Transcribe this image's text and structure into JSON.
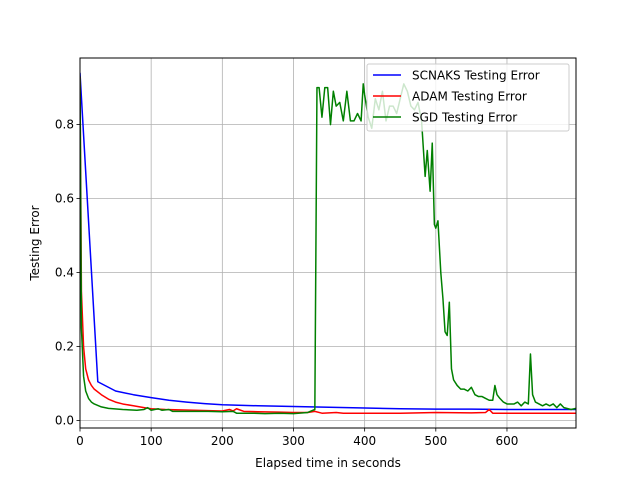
{
  "chart_data": {
    "type": "line",
    "title": "",
    "xlabel": "Elapsed time in seconds",
    "ylabel": "Testing Error",
    "xlim": [
      0,
      697
    ],
    "ylim": [
      -0.02,
      0.98
    ],
    "xticks": [
      0,
      100,
      200,
      300,
      400,
      500,
      600
    ],
    "yticks": [
      0.0,
      0.2,
      0.4,
      0.6,
      0.8
    ],
    "xtick_labels": [
      "0",
      "100",
      "200",
      "300",
      "400",
      "500",
      "600"
    ],
    "ytick_labels": [
      "0.0",
      "0.2",
      "0.4",
      "0.6",
      "0.8"
    ],
    "grid": true,
    "legend_position": "top-right",
    "series": [
      {
        "name": "SCNAKS Testing Error",
        "color": "#0000ff",
        "points": [
          [
            0,
            0.94
          ],
          [
            25,
            0.105
          ],
          [
            50,
            0.08
          ],
          [
            75,
            0.07
          ],
          [
            100,
            0.062
          ],
          [
            125,
            0.055
          ],
          [
            150,
            0.05
          ],
          [
            175,
            0.046
          ],
          [
            200,
            0.043
          ],
          [
            250,
            0.04
          ],
          [
            300,
            0.038
          ],
          [
            350,
            0.036
          ],
          [
            400,
            0.034
          ],
          [
            450,
            0.032
          ],
          [
            500,
            0.031
          ],
          [
            550,
            0.031
          ],
          [
            600,
            0.03
          ],
          [
            650,
            0.03
          ],
          [
            697,
            0.03
          ]
        ]
      },
      {
        "name": "ADAM Testing Error",
        "color": "#ff0000",
        "points": [
          [
            0,
            0.93
          ],
          [
            2,
            0.35
          ],
          [
            5,
            0.2
          ],
          [
            8,
            0.14
          ],
          [
            12,
            0.11
          ],
          [
            16,
            0.095
          ],
          [
            20,
            0.085
          ],
          [
            30,
            0.07
          ],
          [
            40,
            0.058
          ],
          [
            50,
            0.05
          ],
          [
            60,
            0.045
          ],
          [
            75,
            0.04
          ],
          [
            90,
            0.035
          ],
          [
            100,
            0.032
          ],
          [
            120,
            0.03
          ],
          [
            140,
            0.029
          ],
          [
            160,
            0.028
          ],
          [
            180,
            0.027
          ],
          [
            200,
            0.026
          ],
          [
            210,
            0.03
          ],
          [
            215,
            0.026
          ],
          [
            220,
            0.032
          ],
          [
            230,
            0.025
          ],
          [
            250,
            0.024
          ],
          [
            280,
            0.023
          ],
          [
            300,
            0.022
          ],
          [
            320,
            0.022
          ],
          [
            330,
            0.025
          ],
          [
            340,
            0.02
          ],
          [
            350,
            0.021
          ],
          [
            360,
            0.022
          ],
          [
            370,
            0.02
          ],
          [
            400,
            0.02
          ],
          [
            450,
            0.02
          ],
          [
            500,
            0.022
          ],
          [
            550,
            0.021
          ],
          [
            570,
            0.022
          ],
          [
            575,
            0.03
          ],
          [
            580,
            0.02
          ],
          [
            600,
            0.02
          ],
          [
            650,
            0.02
          ],
          [
            697,
            0.02
          ]
        ]
      },
      {
        "name": "SGD Testing Error",
        "color": "#008000",
        "points": [
          [
            0,
            0.93
          ],
          [
            2,
            0.25
          ],
          [
            5,
            0.12
          ],
          [
            8,
            0.08
          ],
          [
            12,
            0.06
          ],
          [
            16,
            0.05
          ],
          [
            20,
            0.045
          ],
          [
            30,
            0.037
          ],
          [
            40,
            0.033
          ],
          [
            60,
            0.03
          ],
          [
            80,
            0.028
          ],
          [
            90,
            0.03
          ],
          [
            95,
            0.035
          ],
          [
            100,
            0.028
          ],
          [
            110,
            0.032
          ],
          [
            115,
            0.028
          ],
          [
            125,
            0.03
          ],
          [
            130,
            0.025
          ],
          [
            150,
            0.025
          ],
          [
            180,
            0.025
          ],
          [
            200,
            0.024
          ],
          [
            215,
            0.025
          ],
          [
            220,
            0.02
          ],
          [
            240,
            0.02
          ],
          [
            260,
            0.019
          ],
          [
            280,
            0.02
          ],
          [
            300,
            0.019
          ],
          [
            320,
            0.022
          ],
          [
            330,
            0.03
          ],
          [
            333,
            0.9
          ],
          [
            336,
            0.9
          ],
          [
            340,
            0.82
          ],
          [
            344,
            0.9
          ],
          [
            348,
            0.9
          ],
          [
            352,
            0.8
          ],
          [
            356,
            0.89
          ],
          [
            360,
            0.85
          ],
          [
            365,
            0.86
          ],
          [
            370,
            0.81
          ],
          [
            375,
            0.89
          ],
          [
            380,
            0.81
          ],
          [
            385,
            0.81
          ],
          [
            390,
            0.83
          ],
          [
            395,
            0.81
          ],
          [
            398,
            0.91
          ],
          [
            400,
            0.88
          ],
          [
            405,
            0.82
          ],
          [
            410,
            0.79
          ],
          [
            415,
            0.87
          ],
          [
            420,
            0.84
          ],
          [
            425,
            0.89
          ],
          [
            430,
            0.81
          ],
          [
            435,
            0.85
          ],
          [
            440,
            0.85
          ],
          [
            445,
            0.83
          ],
          [
            450,
            0.87
          ],
          [
            455,
            0.91
          ],
          [
            460,
            0.89
          ],
          [
            465,
            0.85
          ],
          [
            470,
            0.84
          ],
          [
            475,
            0.86
          ],
          [
            480,
            0.81
          ],
          [
            485,
            0.66
          ],
          [
            488,
            0.73
          ],
          [
            492,
            0.62
          ],
          [
            495,
            0.75
          ],
          [
            498,
            0.53
          ],
          [
            500,
            0.52
          ],
          [
            503,
            0.54
          ],
          [
            507,
            0.4
          ],
          [
            510,
            0.33
          ],
          [
            513,
            0.24
          ],
          [
            516,
            0.23
          ],
          [
            519,
            0.32
          ],
          [
            522,
            0.14
          ],
          [
            525,
            0.11
          ],
          [
            530,
            0.095
          ],
          [
            535,
            0.085
          ],
          [
            540,
            0.085
          ],
          [
            545,
            0.08
          ],
          [
            550,
            0.09
          ],
          [
            555,
            0.07
          ],
          [
            560,
            0.065
          ],
          [
            565,
            0.065
          ],
          [
            570,
            0.06
          ],
          [
            575,
            0.055
          ],
          [
            580,
            0.055
          ],
          [
            583,
            0.095
          ],
          [
            586,
            0.07
          ],
          [
            590,
            0.06
          ],
          [
            595,
            0.05
          ],
          [
            600,
            0.045
          ],
          [
            610,
            0.045
          ],
          [
            615,
            0.05
          ],
          [
            620,
            0.04
          ],
          [
            625,
            0.05
          ],
          [
            630,
            0.045
          ],
          [
            633,
            0.18
          ],
          [
            636,
            0.07
          ],
          [
            640,
            0.05
          ],
          [
            645,
            0.045
          ],
          [
            650,
            0.04
          ],
          [
            655,
            0.045
          ],
          [
            660,
            0.04
          ],
          [
            665,
            0.045
          ],
          [
            670,
            0.035
          ],
          [
            675,
            0.045
          ],
          [
            680,
            0.035
          ],
          [
            690,
            0.03
          ],
          [
            697,
            0.033
          ]
        ]
      }
    ]
  }
}
